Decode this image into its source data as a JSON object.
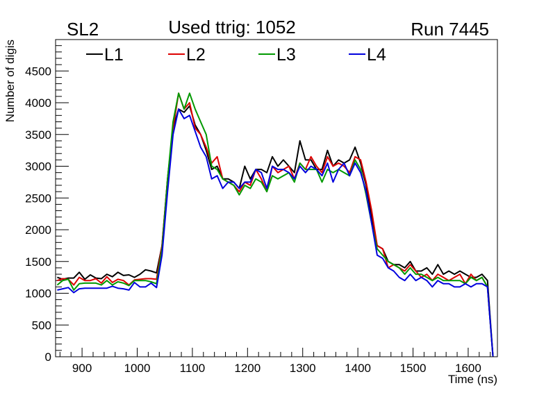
{
  "chart_data": {
    "type": "line",
    "title_left": "SL2",
    "title": "Used ttrig: 1052",
    "title_right": "Run 7445",
    "xlabel": "Time (ns)",
    "ylabel": "Number of digis",
    "xlim": [
      852,
      1653
    ],
    "ylim": [
      0,
      4995
    ],
    "xticks": [
      900,
      1000,
      1100,
      1200,
      1300,
      1400,
      1500,
      1600
    ],
    "yticks": [
      0,
      500,
      1000,
      1500,
      2000,
      2500,
      3000,
      3500,
      4000,
      4500
    ],
    "legend_placement": "top",
    "x_start": 855,
    "x_step": 10,
    "series": [
      {
        "name": "L1",
        "color": "#000000",
        "values": [
          1250,
          1220,
          1240,
          1240,
          1330,
          1220,
          1290,
          1240,
          1230,
          1300,
          1260,
          1330,
          1280,
          1290,
          1250,
          1300,
          1370,
          1350,
          1320,
          1750,
          2800,
          3600,
          3900,
          3850,
          3950,
          3650,
          3500,
          3250,
          2950,
          3000,
          2800,
          2800,
          2750,
          2650,
          3000,
          2800,
          2950,
          2950,
          2900,
          3150,
          3000,
          3100,
          3000,
          2900,
          3400,
          3100,
          3100,
          2950,
          2950,
          3250,
          3000,
          3100,
          3050,
          3100,
          3300,
          3050,
          2700,
          2200,
          1750,
          1700,
          1500,
          1450,
          1450,
          1400,
          1500,
          1350,
          1350,
          1400,
          1300,
          1450,
          1300,
          1350,
          1300,
          1350,
          1300,
          1250,
          1250,
          1300,
          1200,
          0
        ]
      },
      {
        "name": "L2",
        "color": "#dd0000",
        "values": [
          1200,
          1230,
          1220,
          1130,
          1250,
          1200,
          1200,
          1230,
          1160,
          1260,
          1170,
          1220,
          1200,
          1130,
          1210,
          1220,
          1230,
          1230,
          1220,
          1750,
          2800,
          3600,
          4150,
          3900,
          4000,
          3600,
          3500,
          3300,
          3050,
          3150,
          2800,
          2750,
          2700,
          2600,
          2750,
          2700,
          2950,
          2800,
          2600,
          3000,
          2900,
          2950,
          3000,
          2800,
          3050,
          2950,
          3150,
          3000,
          2900,
          3150,
          3000,
          3050,
          3000,
          2900,
          3150,
          3100,
          2750,
          2300,
          1750,
          1700,
          1400,
          1450,
          1400,
          1350,
          1450,
          1350,
          1250,
          1300,
          1200,
          1300,
          1250,
          1200,
          1250,
          1300,
          1150,
          1300,
          1200,
          1250,
          1100,
          0
        ]
      },
      {
        "name": "L3",
        "color": "#009900",
        "values": [
          1130,
          1200,
          1220,
          1050,
          1150,
          1160,
          1160,
          1160,
          1130,
          1200,
          1130,
          1180,
          1160,
          1120,
          1200,
          1200,
          1200,
          1180,
          1150,
          1700,
          2800,
          3700,
          4150,
          3900,
          4150,
          3900,
          3700,
          3500,
          3000,
          2950,
          2800,
          2750,
          2700,
          2550,
          2700,
          2650,
          2800,
          2750,
          2600,
          2850,
          2800,
          2850,
          2900,
          2750,
          3050,
          2950,
          2950,
          2950,
          2750,
          2950,
          2900,
          2950,
          2900,
          2850,
          3100,
          2950,
          2550,
          2100,
          1700,
          1600,
          1500,
          1450,
          1400,
          1300,
          1400,
          1300,
          1300,
          1250,
          1200,
          1250,
          1200,
          1200,
          1200,
          1200,
          1150,
          1250,
          1200,
          1250,
          1100,
          0
        ]
      },
      {
        "name": "L4",
        "color": "#0000dd",
        "values": [
          1050,
          1070,
          1090,
          1010,
          1070,
          1080,
          1080,
          1080,
          1080,
          1080,
          1110,
          1080,
          1070,
          1050,
          1170,
          1100,
          1100,
          1160,
          1090,
          1600,
          2600,
          3500,
          3900,
          3750,
          3800,
          3550,
          3300,
          3150,
          2800,
          2850,
          2650,
          2750,
          2750,
          2650,
          2750,
          2750,
          2950,
          2900,
          2650,
          3000,
          2950,
          2950,
          2900,
          2800,
          3000,
          2900,
          3000,
          2950,
          2850,
          3050,
          2750,
          2950,
          3050,
          2850,
          3050,
          2900,
          2600,
          2100,
          1600,
          1550,
          1400,
          1350,
          1250,
          1200,
          1300,
          1200,
          1250,
          1200,
          1100,
          1200,
          1150,
          1150,
          1100,
          1100,
          1150,
          1100,
          1150,
          1150,
          1100,
          0
        ]
      }
    ]
  }
}
